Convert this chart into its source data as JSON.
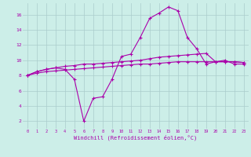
{
  "xlabel": "Windchill (Refroidissement éolien,°C)",
  "background_color": "#cceee8",
  "grid_color": "#aacccc",
  "line_color": "#aa00aa",
  "xlim": [
    -0.5,
    23.5
  ],
  "ylim": [
    1.0,
    17.5
  ],
  "xticks": [
    0,
    1,
    2,
    3,
    4,
    5,
    6,
    7,
    8,
    9,
    10,
    11,
    12,
    13,
    14,
    15,
    16,
    17,
    18,
    19,
    20,
    21,
    22,
    23
  ],
  "yticks": [
    2,
    4,
    6,
    8,
    10,
    12,
    14,
    16
  ],
  "hours": [
    0,
    1,
    2,
    3,
    4,
    5,
    6,
    7,
    8,
    9,
    10,
    11,
    12,
    13,
    14,
    15,
    16,
    17,
    18,
    19,
    20,
    21,
    22,
    23
  ],
  "line1": [
    8.0,
    8.5,
    8.8,
    9.0,
    8.8,
    7.5,
    2.0,
    5.0,
    5.2,
    7.5,
    10.5,
    10.8,
    13.0,
    15.5,
    16.2,
    17.0,
    16.5,
    13.0,
    11.5,
    9.5,
    9.8,
    10.0,
    9.5,
    9.5
  ],
  "line2": [
    8.0,
    8.5,
    8.8,
    9.0,
    9.2,
    9.3,
    9.5,
    9.5,
    9.6,
    9.7,
    9.8,
    9.9,
    10.0,
    10.2,
    10.4,
    10.5,
    10.6,
    10.7,
    10.8,
    10.9,
    9.8,
    9.8,
    9.8,
    9.7
  ],
  "line3": [
    8.0,
    8.3,
    8.5,
    8.6,
    8.7,
    8.8,
    8.9,
    9.0,
    9.1,
    9.2,
    9.3,
    9.4,
    9.5,
    9.5,
    9.6,
    9.7,
    9.8,
    9.8,
    9.8,
    9.8,
    9.8,
    9.8,
    9.8,
    9.7
  ]
}
